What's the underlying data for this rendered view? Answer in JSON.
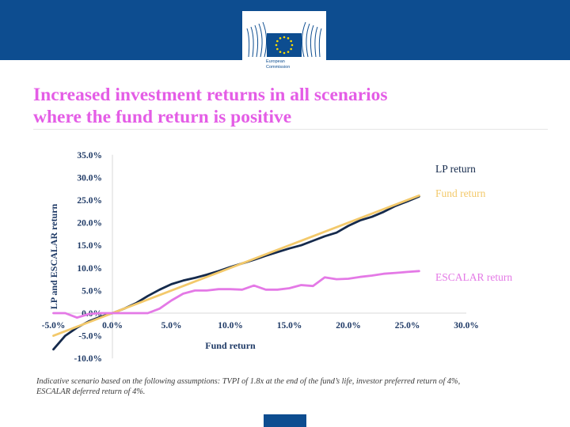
{
  "header": {
    "logo_line1": "European",
    "logo_line2": "Commission",
    "colors": {
      "band": "#0d4d90",
      "star": "#ffdd00"
    }
  },
  "title_line1": "Increased investment returns in all scenarios",
  "title_line2": "where the fund return is positive",
  "footnote_line1": "Indicative scenario based on the following assumptions: TVPI of 1.8x at the end of the fund’s life, investor preferred return of 4%,",
  "footnote_line2": "ESCALAR deferred return of 4%.",
  "chart_data": {
    "type": "line",
    "title": "",
    "xlabel": "Fund return",
    "ylabel": "LP and ESCALAR return",
    "xlim": [
      -0.05,
      0.3
    ],
    "ylim": [
      -0.1,
      0.35
    ],
    "x_ticks": [
      -0.05,
      0.0,
      0.05,
      0.1,
      0.15,
      0.2,
      0.25,
      0.3
    ],
    "x_tick_labels": [
      "-5.0%",
      "0.0%",
      "5.0%",
      "10.0%",
      "15.0%",
      "20.0%",
      "25.0%",
      "30.0%"
    ],
    "y_ticks": [
      -0.1,
      -0.05,
      0.0,
      0.05,
      0.1,
      0.15,
      0.2,
      0.25,
      0.3,
      0.35
    ],
    "y_tick_labels": [
      "-10.0%",
      "-5.0%",
      "0.0%",
      "5.0%",
      "10.0%",
      "15.0%",
      "20.0%",
      "25.0%",
      "30.0%",
      "35.0%"
    ],
    "series": [
      {
        "name": "LP return",
        "color": "#152a4c",
        "legend": "LP return",
        "x": [
          -0.05,
          -0.04,
          -0.03,
          -0.02,
          -0.01,
          0.0,
          0.01,
          0.02,
          0.03,
          0.04,
          0.05,
          0.06,
          0.07,
          0.08,
          0.09,
          0.1,
          0.11,
          0.12,
          0.13,
          0.14,
          0.15,
          0.16,
          0.17,
          0.18,
          0.19,
          0.2,
          0.21,
          0.22,
          0.23,
          0.24,
          0.25,
          0.26
        ],
        "y": [
          -0.08,
          -0.05,
          -0.032,
          -0.018,
          -0.008,
          0.0,
          0.01,
          0.022,
          0.038,
          0.052,
          0.064,
          0.072,
          0.078,
          0.085,
          0.093,
          0.102,
          0.11,
          0.118,
          0.127,
          0.135,
          0.143,
          0.15,
          0.16,
          0.17,
          0.178,
          0.193,
          0.205,
          0.213,
          0.224,
          0.237,
          0.247,
          0.258
        ]
      },
      {
        "name": "Fund return",
        "color": "#f3c96b",
        "legend": "Fund return",
        "x": [
          -0.05,
          0.26
        ],
        "y": [
          -0.05,
          0.26
        ]
      },
      {
        "name": "ESCALAR return",
        "color": "#e479e6",
        "legend": "ESCALAR return",
        "x": [
          -0.05,
          -0.04,
          -0.03,
          -0.02,
          -0.01,
          0.0,
          0.01,
          0.02,
          0.03,
          0.04,
          0.05,
          0.06,
          0.07,
          0.08,
          0.09,
          0.1,
          0.11,
          0.12,
          0.13,
          0.14,
          0.15,
          0.16,
          0.17,
          0.18,
          0.19,
          0.2,
          0.21,
          0.22,
          0.23,
          0.24,
          0.25,
          0.26
        ],
        "y": [
          0.0,
          0.0,
          -0.01,
          -0.002,
          0.0,
          0.0,
          0.0,
          0.0,
          0.0,
          0.01,
          0.028,
          0.043,
          0.05,
          0.05,
          0.053,
          0.053,
          0.052,
          0.061,
          0.052,
          0.052,
          0.055,
          0.062,
          0.06,
          0.079,
          0.075,
          0.076,
          0.08,
          0.083,
          0.087,
          0.089,
          0.091,
          0.093
        ]
      }
    ]
  }
}
